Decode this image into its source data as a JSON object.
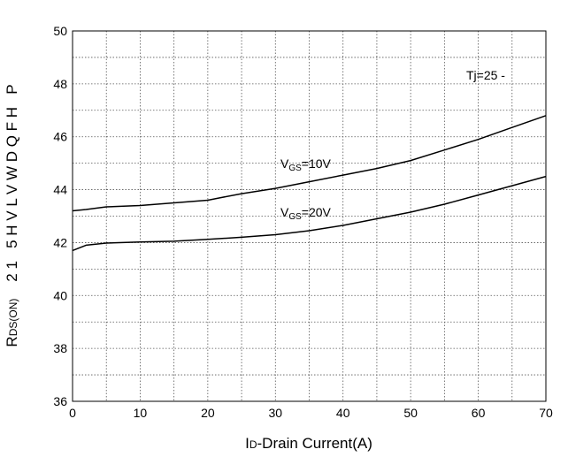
{
  "chart_data": {
    "type": "line",
    "xlabel": {
      "prefix": "I",
      "sub": "D",
      "rest": "-Drain Current(A)"
    },
    "ylabel": {
      "prefix": "R",
      "sub": "DS(ON)",
      "garbled": "2 1   5 H V L V W D Q F H   P"
    },
    "xlim": [
      0,
      70
    ],
    "ylim": [
      36,
      50
    ],
    "x_ticks": [
      0,
      10,
      20,
      30,
      40,
      50,
      60,
      70
    ],
    "y_ticks": [
      36,
      38,
      40,
      42,
      44,
      46,
      48,
      50
    ],
    "x_minor_step": 5,
    "y_minor_step": 1,
    "grid": true,
    "annotation": "Tj=25 -",
    "series": [
      {
        "name": {
          "prefix": "V",
          "sub": "GS",
          "rest": "=10V"
        },
        "x": [
          0,
          2,
          5,
          10,
          15,
          20,
          22,
          25,
          30,
          35,
          40,
          45,
          50,
          55,
          60,
          65,
          70
        ],
        "y": [
          43.2,
          43.25,
          43.35,
          43.4,
          43.5,
          43.6,
          43.7,
          43.85,
          44.05,
          44.3,
          44.55,
          44.8,
          45.1,
          45.5,
          45.9,
          46.35,
          46.8
        ]
      },
      {
        "name": {
          "prefix": "V",
          "sub": "GS",
          "rest": "=20V"
        },
        "x": [
          0,
          2,
          5,
          10,
          15,
          20,
          25,
          30,
          35,
          40,
          45,
          50,
          55,
          60,
          65,
          70
        ],
        "y": [
          41.7,
          41.9,
          41.98,
          42.02,
          42.05,
          42.12,
          42.2,
          42.3,
          42.45,
          42.65,
          42.9,
          43.15,
          43.45,
          43.8,
          44.15,
          44.5
        ]
      }
    ]
  }
}
